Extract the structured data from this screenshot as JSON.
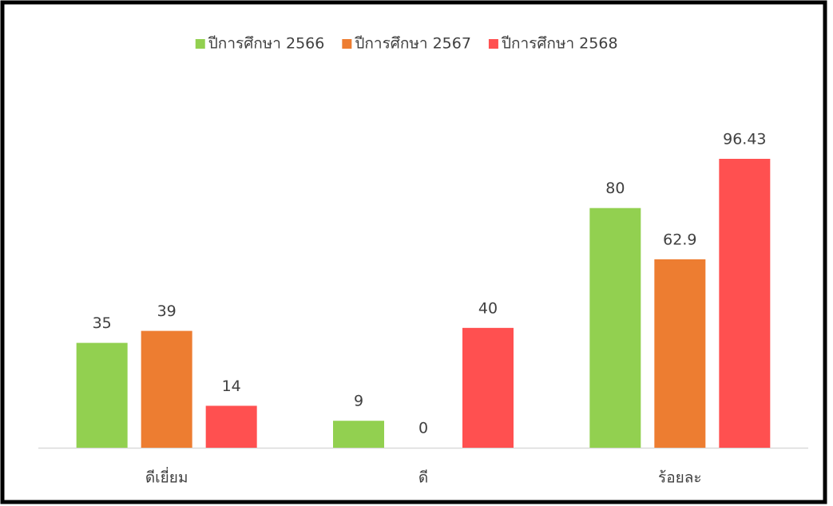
{
  "chart_data": {
    "type": "bar",
    "categories": [
      "ดีเยี่ยม",
      "ดี",
      "ร้อยละ"
    ],
    "series": [
      {
        "name": "ปีการศึกษา 2566",
        "color": "#92d050",
        "values": [
          35,
          9,
          80
        ]
      },
      {
        "name": "ปีการศึกษา 2567",
        "color": "#ed7d31",
        "values": [
          39,
          0,
          62.9
        ]
      },
      {
        "name": "ปีการศึกษา 2568",
        "color": "#ff5050",
        "values": [
          14,
          40,
          96.43
        ]
      }
    ],
    "legend": "top"
  }
}
